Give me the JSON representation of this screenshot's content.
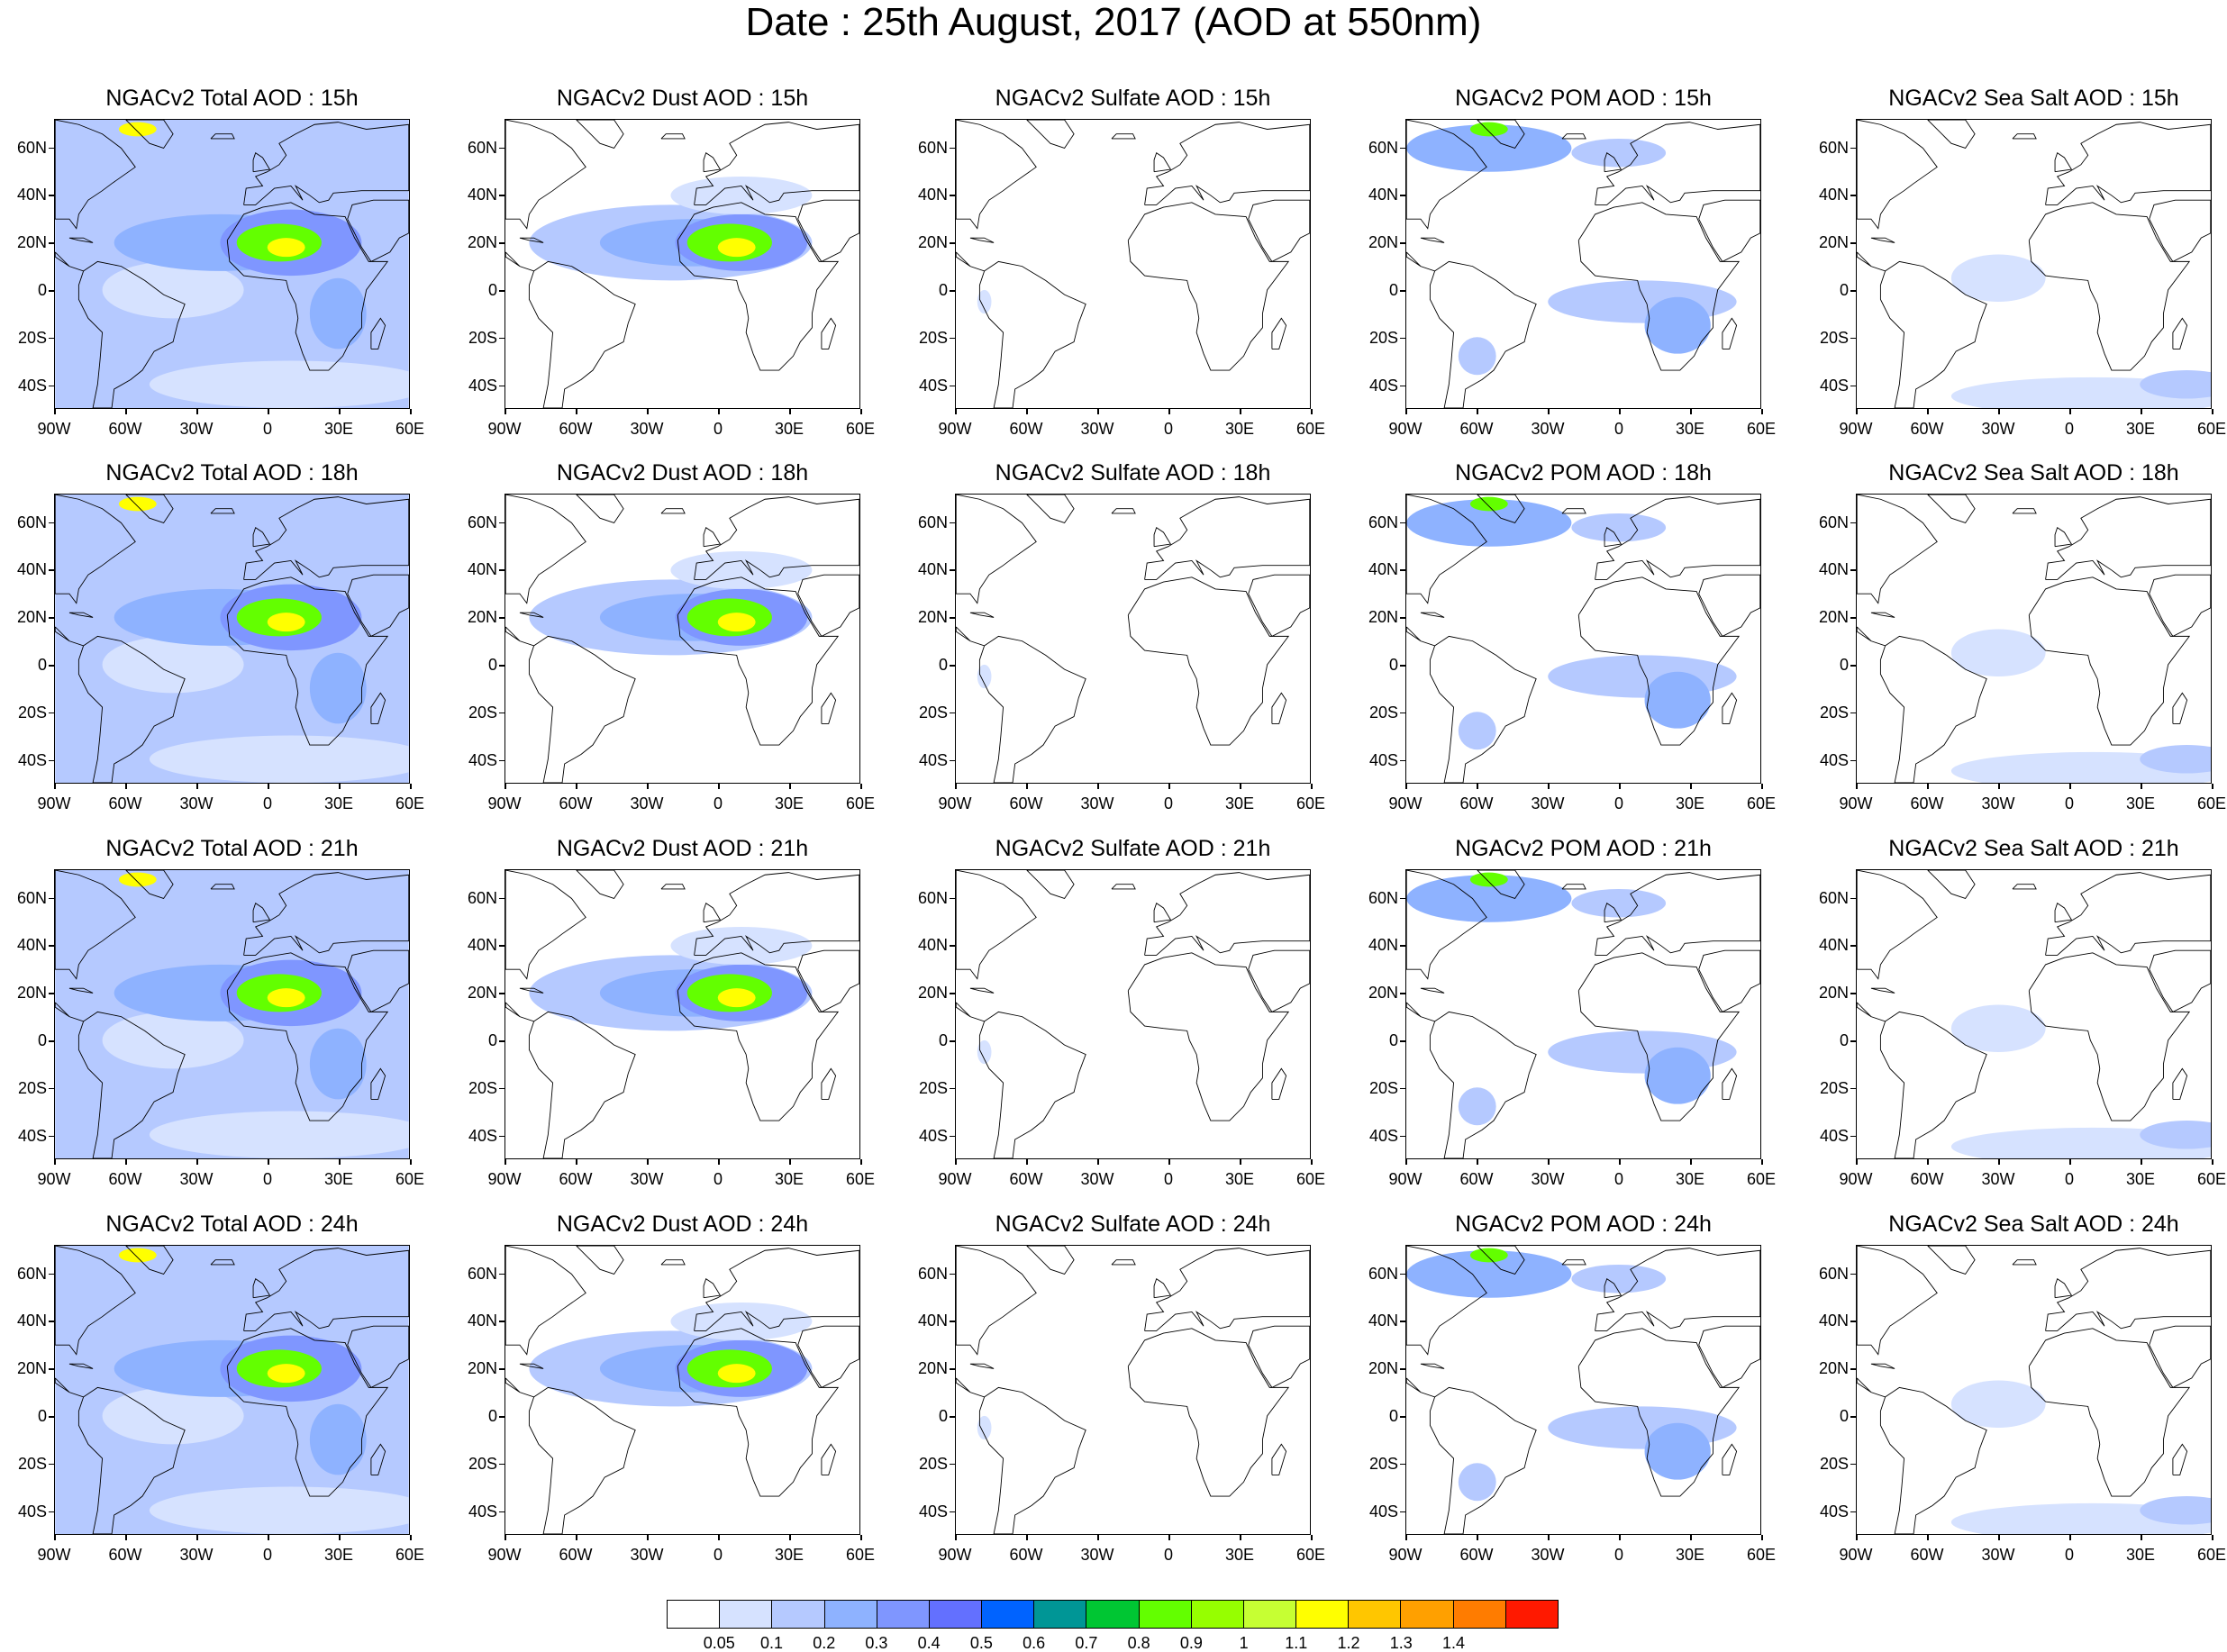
{
  "title": "Date : 25th August, 2017 (AOD at 550nm)",
  "axes": {
    "lat_labels": [
      "60N",
      "40N",
      "20N",
      "0",
      "20S",
      "40S"
    ],
    "lon_labels": [
      "90W",
      "60W",
      "30W",
      "0",
      "30E",
      "60E"
    ]
  },
  "species": [
    "total",
    "dust",
    "sulfate",
    "pom",
    "seasalt"
  ],
  "panels": [
    [
      "NGACv2 Total AOD : 15h",
      "NGACv2 Dust AOD : 15h",
      "NGACv2 Sulfate AOD : 15h",
      "NGACv2 POM AOD : 15h",
      "NGACv2 Sea Salt AOD : 15h"
    ],
    [
      "NGACv2 Total AOD : 18h",
      "NGACv2 Dust AOD : 18h",
      "NGACv2 Sulfate AOD : 18h",
      "NGACv2 POM AOD : 18h",
      "NGACv2 Sea Salt AOD : 18h"
    ],
    [
      "NGACv2 Total AOD : 21h",
      "NGACv2 Dust AOD : 21h",
      "NGACv2 Sulfate AOD : 21h",
      "NGACv2 POM AOD : 21h",
      "NGACv2 Sea Salt AOD : 21h"
    ],
    [
      "NGACv2 Total AOD : 24h",
      "NGACv2 Dust AOD : 24h",
      "NGACv2 Sulfate AOD : 24h",
      "NGACv2 POM AOD : 24h",
      "NGACv2 Sea Salt  AOD : 24h"
    ]
  ],
  "colorbar": {
    "colors": [
      "#ffffff",
      "#d6e2ff",
      "#b5c9ff",
      "#8eb2ff",
      "#7f96ff",
      "#6370ff",
      "#0063ff",
      "#009696",
      "#00c633",
      "#63ff00",
      "#96ff00",
      "#c6ff33",
      "#ffff00",
      "#ffc600",
      "#ffa000",
      "#ff7c00",
      "#ff1900"
    ],
    "labels": [
      "0.05",
      "0.1",
      "0.2",
      "0.3",
      "0.4",
      "0.5",
      "0.6",
      "0.7",
      "0.8",
      "0.9",
      "1",
      "1.1",
      "1.2",
      "1.3",
      "1.4"
    ]
  }
}
